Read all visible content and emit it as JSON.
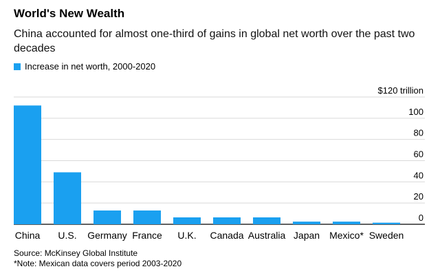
{
  "title": "World's New Wealth",
  "subtitle": "China accounted for almost one-third of gains in global net worth over the past two decades",
  "source": "Source: McKinsey Global Institute",
  "note": "*Note: Mexican data covers period 2003-2020",
  "colors": {
    "bar": "#1aa0f0",
    "grid": "#d9d9d9",
    "axis": "#000000"
  },
  "chart_data": {
    "type": "bar",
    "categories": [
      "China",
      "U.S.",
      "Germany",
      "France",
      "U.K.",
      "Canada",
      "Australia",
      "Japan",
      "Mexico*",
      "Sweden"
    ],
    "series": [
      {
        "name": "Increase in net worth, 2000-2020",
        "values": [
          112,
          49,
          13,
          13,
          6.5,
          6.5,
          6.5,
          2.5,
          2.5,
          1.5
        ]
      }
    ],
    "ylim": [
      0,
      120
    ],
    "yticks": [
      0,
      20,
      40,
      60,
      80,
      100,
      120
    ],
    "ytick_labels": [
      "0",
      "20",
      "40",
      "60",
      "80",
      "100",
      "$120 trillion"
    ],
    "grid": true,
    "legend_position": "top-left"
  }
}
